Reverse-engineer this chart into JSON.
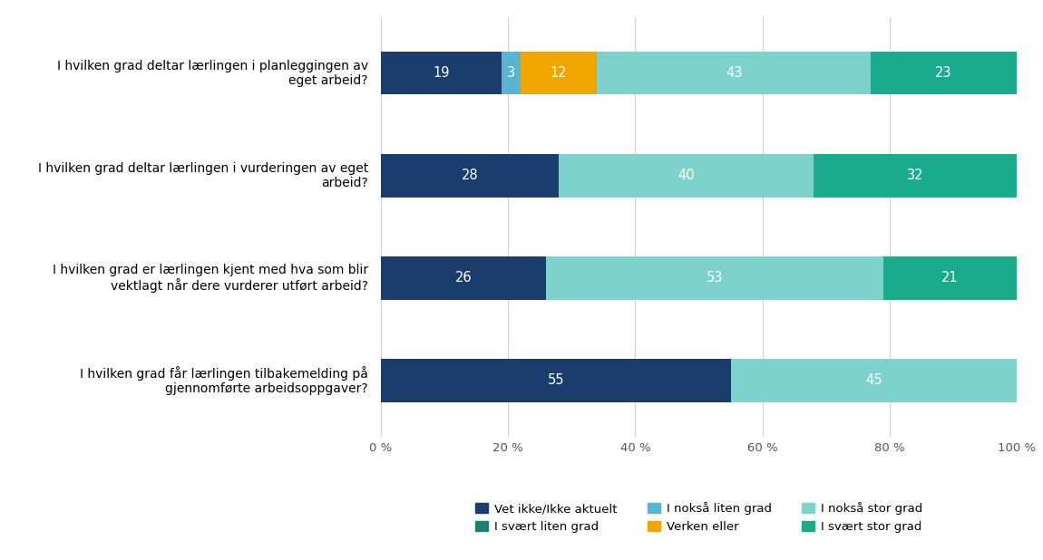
{
  "questions": [
    "I hvilken grad deltar lærlingen i planleggingen av\neget arbeid?",
    "I hvilken grad deltar lærlingen i vurderingen av eget\narbeid?",
    "I hvilken grad er lærlingen kjent med hva som blir\nvektlagt når dere vurderer utført arbeid?",
    "I hvilken grad får lærlingen tilbakemelding på\ngjennomførte arbeidsoppgaver?"
  ],
  "colors": [
    "#1b3d6e",
    "#1b8070",
    "#5ab4d0",
    "#f0a500",
    "#7dd3cc",
    "#1aab8a"
  ],
  "data": [
    [
      19,
      0,
      3,
      12,
      43,
      23
    ],
    [
      28,
      0,
      0,
      0,
      40,
      32
    ],
    [
      26,
      0,
      0,
      0,
      53,
      21
    ],
    [
      55,
      0,
      0,
      0,
      45,
      0
    ]
  ],
  "legend_row1": [
    {
      "label": "Vet ikke/Ikke aktuelt",
      "color": "#1b3d6e"
    },
    {
      "label": "I svært liten grad",
      "color": "#1b8070"
    },
    {
      "label": "I nokså liten grad",
      "color": "#5ab4d0"
    }
  ],
  "legend_row2": [
    {
      "label": "Verken eller",
      "color": "#f0a500"
    },
    {
      "label": "I nokså stor grad",
      "color": "#7dd3cc"
    },
    {
      "label": "I svært stor grad",
      "color": "#1aab8a"
    }
  ],
  "xlim": [
    0,
    100
  ],
  "xticks": [
    0,
    20,
    40,
    60,
    80,
    100
  ],
  "xtick_labels": [
    "0 %",
    "20 %",
    "40 %",
    "60 %",
    "80 %",
    "100 %"
  ],
  "background_color": "#ffffff",
  "bar_height": 0.42,
  "text_color_light": "#ffffff",
  "label_fontsize": 10.5
}
